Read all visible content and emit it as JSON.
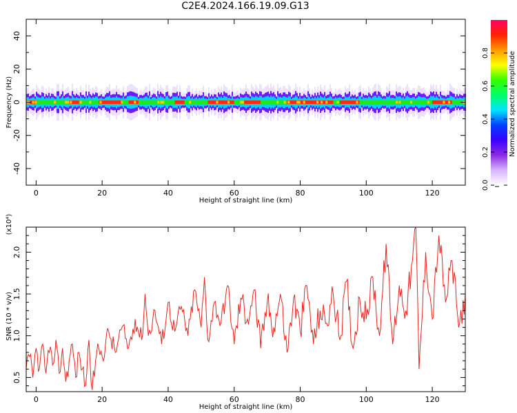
{
  "title": "C2E4.2024.166.19.09.G13",
  "chart_data": [
    {
      "type": "heatmap",
      "xlabel": "Height of straight line (km)",
      "ylabel": "Frequency (Hz)",
      "xlim": [
        -3,
        130
      ],
      "ylim": [
        -50,
        50
      ],
      "xticks": [
        0,
        20,
        40,
        60,
        80,
        100,
        120
      ],
      "yticks": [
        -40,
        -20,
        0,
        20,
        40
      ],
      "band": {
        "center_hz": 0,
        "core_halfwidth_hz": 1.5,
        "spread_halfwidth_hz": 6,
        "peak_segments_km": [
          [
            -3,
            0
          ],
          [
            10,
            13
          ],
          [
            19,
            26
          ],
          [
            28,
            31
          ],
          [
            42,
            45
          ],
          [
            52,
            60
          ],
          [
            63,
            68
          ],
          [
            76,
            90
          ],
          [
            92,
            98
          ],
          [
            120,
            126
          ]
        ]
      },
      "colorbar": {
        "label": "Normalized spectral amplitude",
        "range": [
          0.0,
          1.0
        ],
        "ticks": [
          "0.0",
          "0.2",
          "0.4",
          "0.6",
          "0.8"
        ],
        "colors": [
          "#ffffff",
          "#d8b4fe",
          "#8a2be2",
          "#3a00ff",
          "#0040ff",
          "#00e5ff",
          "#00ff66",
          "#33ff00",
          "#ffff00",
          "#ff9900",
          "#ff2200",
          "#ff0066"
        ]
      }
    },
    {
      "type": "line",
      "xlabel": "Height of straight line (km)",
      "ylabel": "SNR (10 * v/v)",
      "y_multiplier": "(x10⁴)",
      "xlim": [
        -3,
        130
      ],
      "ylim": [
        0.33,
        2.3
      ],
      "xticks": [
        0,
        20,
        40,
        60,
        80,
        100,
        120
      ],
      "yticks": [
        0.5,
        1.0,
        1.5,
        2.0
      ],
      "ytick_labels": [
        "0.5",
        "1.0",
        "1.5",
        "2.0"
      ],
      "series": [
        {
          "color": "#e8221c",
          "x": [
            -3,
            -2,
            -1,
            0,
            1,
            2,
            3,
            4,
            5,
            6,
            7,
            8,
            9,
            10,
            11,
            12,
            13,
            14,
            15,
            16,
            17,
            18,
            19,
            20,
            22,
            24,
            26,
            28,
            30,
            32,
            33,
            34,
            36,
            38,
            40,
            42,
            44,
            46,
            48,
            50,
            51,
            52,
            54,
            56,
            58,
            60,
            62,
            64,
            66,
            68,
            70,
            72,
            74,
            76,
            78,
            80,
            82,
            84,
            86,
            88,
            90,
            92,
            94,
            96,
            98,
            100,
            102,
            104,
            106,
            108,
            110,
            112,
            114,
            115,
            116,
            118,
            120,
            122,
            124,
            126,
            128,
            130
          ],
          "y": [
            0.6,
            0.75,
            0.5,
            0.85,
            0.6,
            0.9,
            0.55,
            0.8,
            0.65,
            0.95,
            0.55,
            0.85,
            0.45,
            0.7,
            0.9,
            0.5,
            0.8,
            0.6,
            0.4,
            0.95,
            0.35,
            0.7,
            0.85,
            0.75,
            1.05,
            0.8,
            1.1,
            0.85,
            1.2,
            0.95,
            1.5,
            1.0,
            1.3,
            0.9,
            1.4,
            1.05,
            1.35,
            1.0,
            1.55,
            1.1,
            1.7,
            0.95,
            1.4,
            1.15,
            1.6,
            0.9,
            1.45,
            1.2,
            1.55,
            0.85,
            1.4,
            1.1,
            1.5,
            0.8,
            1.45,
            1.05,
            1.6,
            0.9,
            1.3,
            1.15,
            1.5,
            0.95,
            1.65,
            0.85,
            1.45,
            1.2,
            1.7,
            1.0,
            2.1,
            0.9,
            1.6,
            1.3,
            1.9,
            2.3,
            0.6,
            2.0,
            1.2,
            2.2,
            1.4,
            1.9,
            1.1,
            1.5
          ]
        }
      ]
    }
  ]
}
